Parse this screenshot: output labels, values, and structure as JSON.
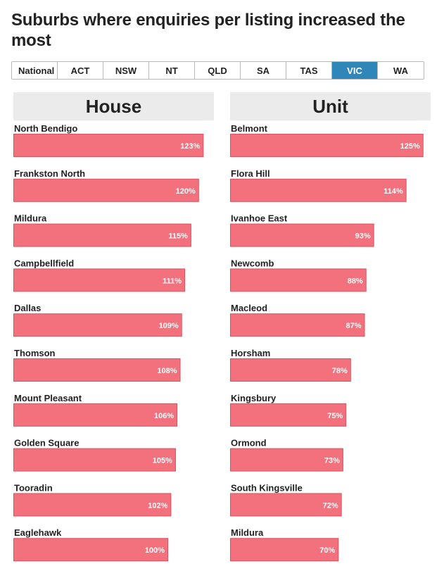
{
  "title": "Suburbs where enquiries per listing increased the most",
  "tabs": [
    "National",
    "ACT",
    "NSW",
    "NT",
    "QLD",
    "SA",
    "TAS",
    "VIC",
    "WA"
  ],
  "active_tab": "VIC",
  "colors": {
    "bar": "#f2717d",
    "bar_border": "#d9535f",
    "tab_active": "#2f86b9",
    "header_bg": "#ebebeb"
  },
  "chart_data": [
    {
      "type": "bar",
      "title": "House",
      "orientation": "horizontal",
      "categories": [
        "North Bendigo",
        "Frankston North",
        "Mildura",
        "Campbellfield",
        "Dallas",
        "Thomson",
        "Mount Pleasant",
        "Golden Square",
        "Tooradin",
        "Eaglehawk"
      ],
      "values": [
        123,
        120,
        115,
        111,
        109,
        108,
        106,
        105,
        102,
        100
      ],
      "value_labels": [
        "123%",
        "120%",
        "115%",
        "111%",
        "109%",
        "108%",
        "106%",
        "105%",
        "102%",
        "100%"
      ],
      "unit": "%",
      "xlim": [
        0,
        130
      ]
    },
    {
      "type": "bar",
      "title": "Unit",
      "orientation": "horizontal",
      "categories": [
        "Belmont",
        "Flora Hill",
        "Ivanhoe East",
        "Newcomb",
        "Macleod",
        "Horsham",
        "Kingsbury",
        "Ormond",
        "South Kingsville",
        "Mildura"
      ],
      "values": [
        125,
        114,
        93,
        88,
        87,
        78,
        75,
        73,
        72,
        70
      ],
      "value_labels": [
        "125%",
        "114%",
        "93%",
        "88%",
        "87%",
        "78%",
        "75%",
        "73%",
        "72%",
        "70%"
      ],
      "unit": "%",
      "xlim": [
        0,
        130
      ]
    }
  ]
}
